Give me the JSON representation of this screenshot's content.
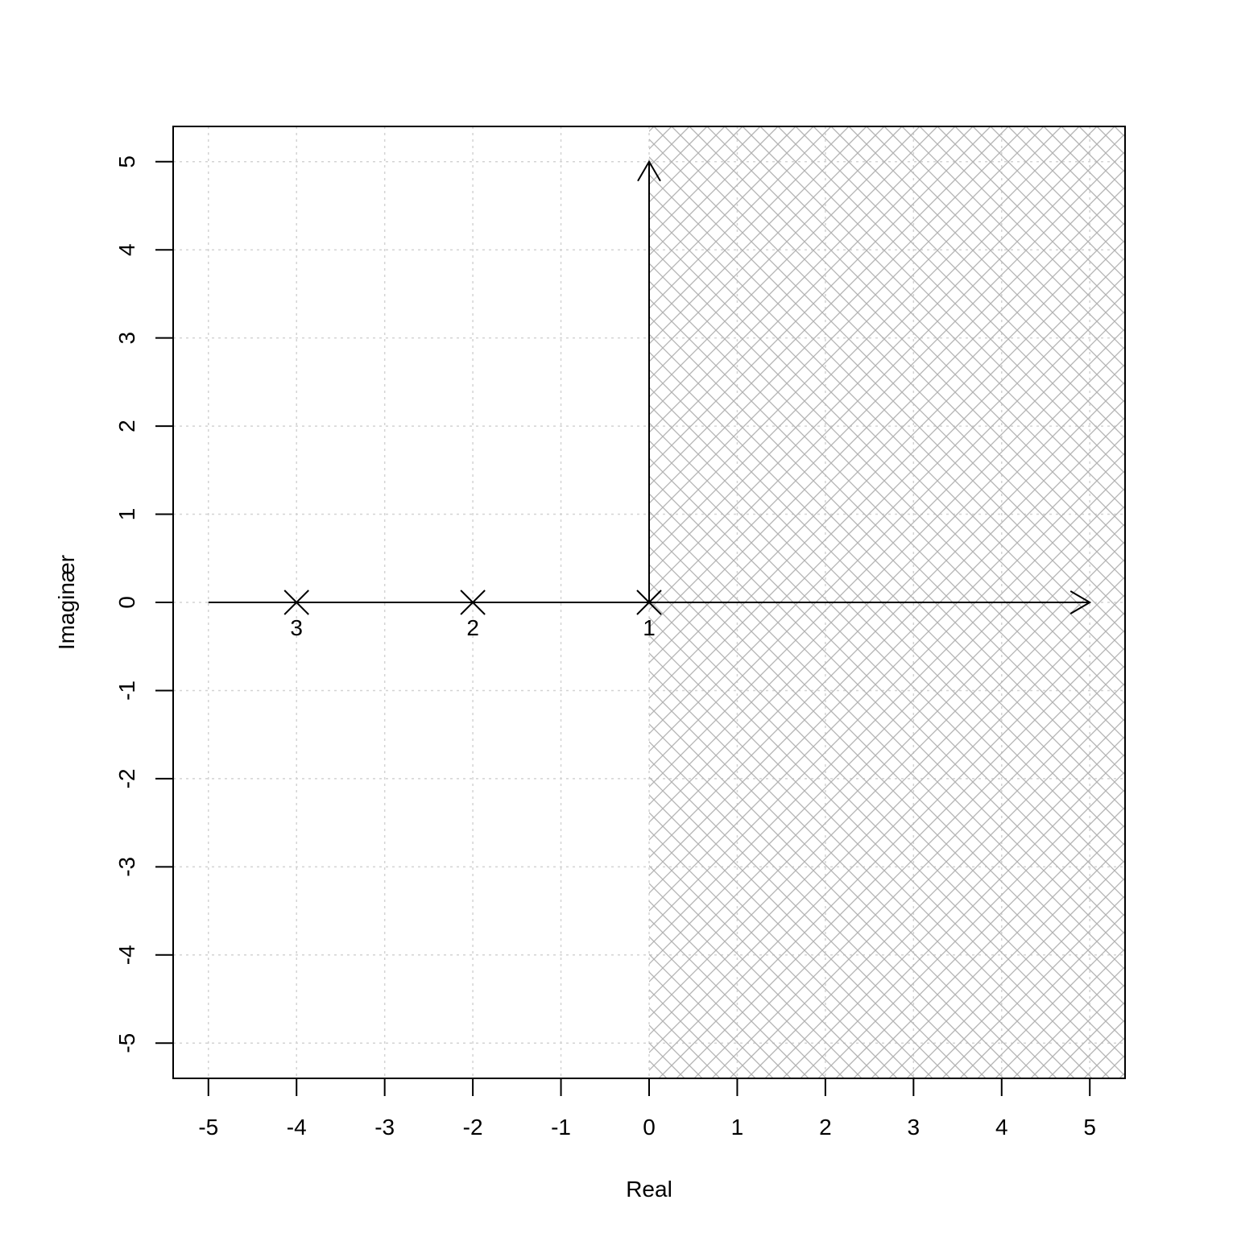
{
  "chart_data": {
    "type": "scatter",
    "title": "",
    "xlabel": "Real",
    "ylabel": "Imaginær",
    "xlim": [
      -5.4,
      5.4
    ],
    "ylim": [
      -5.4,
      5.4
    ],
    "x_ticks": [
      -5,
      -4,
      -3,
      -2,
      -1,
      0,
      1,
      2,
      3,
      4,
      5
    ],
    "y_ticks": [
      -5,
      -4,
      -3,
      -2,
      -1,
      0,
      1,
      2,
      3,
      4,
      5
    ],
    "x_tick_labels": [
      "-5",
      "-4",
      "-3",
      "-2",
      "-1",
      "0",
      "1",
      "2",
      "3",
      "4",
      "5"
    ],
    "y_tick_labels": [
      "-5",
      "-4",
      "-3",
      "-2",
      "-1",
      "0",
      "1",
      "2",
      "3",
      "4",
      "5"
    ],
    "grid": true,
    "shaded_region": {
      "description": "right half-plane",
      "x_from": 0,
      "pattern": "crosshatch"
    },
    "axis_arrows": {
      "real_axis": [
        -5,
        5
      ],
      "imag_axis": [
        0,
        5
      ]
    },
    "points": [
      {
        "label": "1",
        "x": 0,
        "y": 0,
        "marker": "x"
      },
      {
        "label": "2",
        "x": -2,
        "y": 0,
        "marker": "x"
      },
      {
        "label": "3",
        "x": -4,
        "y": 0,
        "marker": "x"
      }
    ],
    "colors": {
      "hatch": "#b3b3b3",
      "grid": "#d3d3d3",
      "ink": "#000000"
    }
  }
}
